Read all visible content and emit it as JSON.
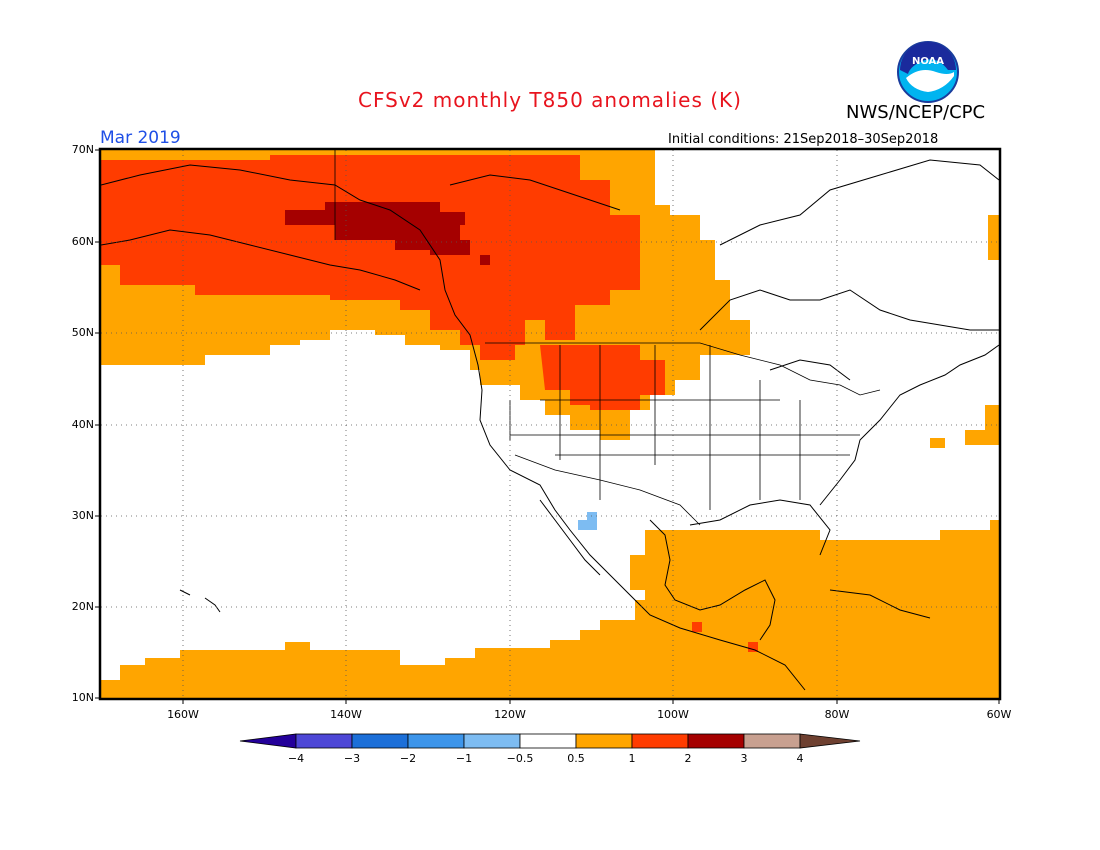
{
  "title": "CFSv2 monthly T850 anomalies (K)",
  "agency": "NWS/NCEP/CPC",
  "logo_text": "NOAA",
  "valid_month": "Mar 2019",
  "initial_conditions": "Initial conditions: 21Sep2018–30Sep2018",
  "latitude_labels": [
    "70N",
    "60N",
    "50N",
    "40N",
    "30N",
    "20N",
    "10N"
  ],
  "longitude_labels": [
    "160W",
    "140W",
    "120W",
    "100W",
    "80W",
    "60W"
  ],
  "colorbar": {
    "labels": [
      "−4",
      "−3",
      "−2",
      "−1",
      "−0.5",
      "0.5",
      "1",
      "2",
      "3",
      "4"
    ],
    "colors": [
      "#24009a",
      "#4d47d6",
      "#1c6fd8",
      "#3d95ea",
      "#7dbcf2",
      "#ffffff",
      "#ffa500",
      "#ff3c00",
      "#a50000",
      "#c8a090",
      "#6e4030"
    ]
  },
  "anomaly_colors": {
    "0.5_to_1": "#ffa500",
    "1_to_2": "#ff3c00",
    "2_to_3": "#a50000",
    "-1_to_-0.5": "#7dbcf2"
  }
}
